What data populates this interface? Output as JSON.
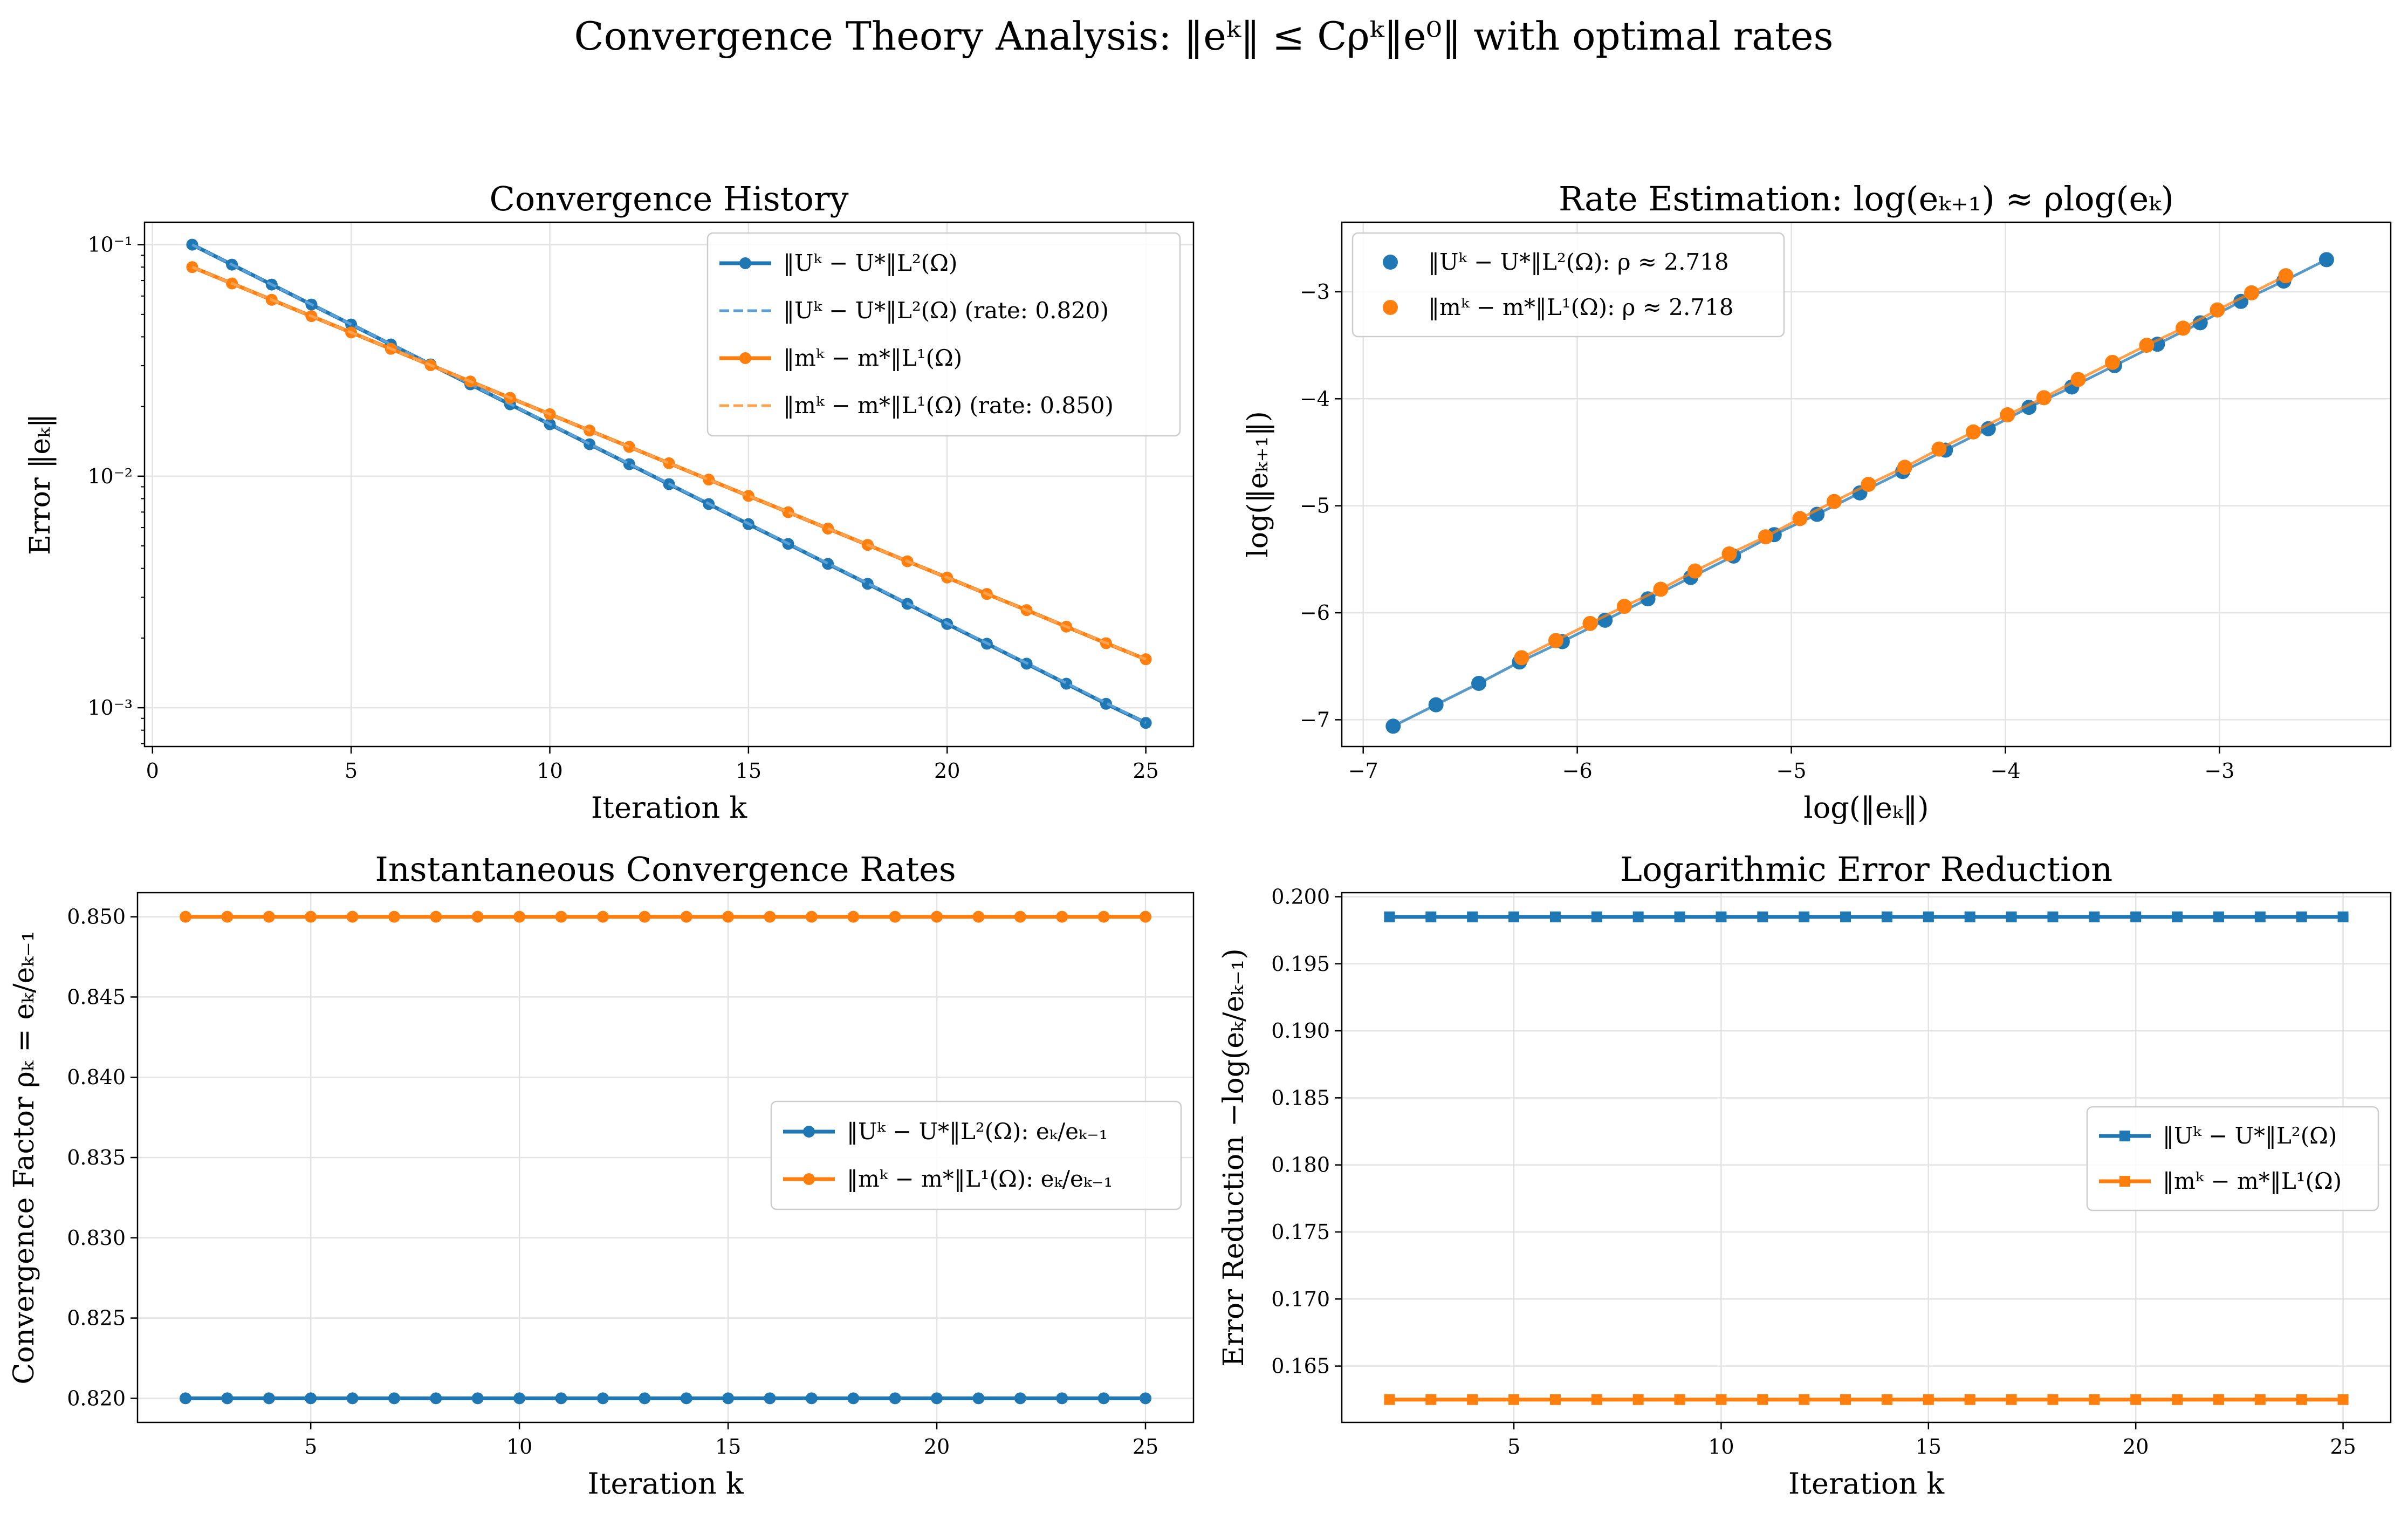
{
  "figure": {
    "suptitle": "Convergence Theory Analysis: ‖eᵏ‖ ≤ Cρᵏ‖e⁰‖ with optimal rates"
  },
  "colors": {
    "blue": "#1f77b4",
    "orange": "#ff7f0e",
    "blue_fit": "#5aa0d8",
    "orange_fit": "#ffa14d"
  },
  "chart_data": [
    {
      "id": "history",
      "type": "line",
      "title": "Convergence History",
      "xlabel": "Iteration k",
      "ylabel": "Error ‖eₖ‖",
      "yscale": "log",
      "xlim": [
        -0.2,
        26.2
      ],
      "ylim": [
        0.00068,
        0.125
      ],
      "xticks": [
        0,
        5,
        10,
        15,
        20,
        25
      ],
      "yticks": [
        0.001,
        0.01,
        0.1
      ],
      "ytick_labels": [
        "10⁻³",
        "10⁻²",
        "10⁻¹"
      ],
      "grid": true,
      "legend_position": "upper right",
      "series": [
        {
          "name": "‖Uᵏ − U*‖L²(Ω)",
          "color": "#1f77b4",
          "style": "line-marker",
          "x": [
            1,
            2,
            3,
            4,
            5,
            6,
            7,
            8,
            9,
            10,
            11,
            12,
            13,
            14,
            15,
            16,
            17,
            18,
            19,
            20,
            21,
            22,
            23,
            24,
            25
          ],
          "values": [
            0.1,
            0.082,
            0.06724,
            0.05514,
            0.04521,
            0.03707,
            0.0304,
            0.02493,
            0.02044,
            0.01676,
            0.01374,
            0.01127,
            0.00924,
            0.00758,
            0.00621,
            0.0051,
            0.00418,
            0.00343,
            0.00281,
            0.0023,
            0.00189,
            0.00155,
            0.00127,
            0.00104,
            0.00086
          ]
        },
        {
          "name": "‖Uᵏ − U*‖L²(Ω) (rate: 0.820)",
          "color": "#5aa0d8",
          "style": "dashed",
          "x": [
            1,
            25
          ],
          "values": [
            0.1,
            0.00086
          ]
        },
        {
          "name": "‖mᵏ − m*‖L¹(Ω)",
          "color": "#ff7f0e",
          "style": "line-marker",
          "x": [
            1,
            2,
            3,
            4,
            5,
            6,
            7,
            8,
            9,
            10,
            11,
            12,
            13,
            14,
            15,
            16,
            17,
            18,
            19,
            20,
            21,
            22,
            23,
            24,
            25
          ],
          "values": [
            0.08,
            0.068,
            0.0578,
            0.04913,
            0.04176,
            0.0355,
            0.03017,
            0.02565,
            0.0218,
            0.01853,
            0.01575,
            0.01339,
            0.01138,
            0.00967,
            0.00822,
            0.00699,
            0.00594,
            0.00505,
            0.00429,
            0.00365,
            0.0031,
            0.00264,
            0.00224,
            0.0019,
            0.00162
          ]
        },
        {
          "name": "‖mᵏ − m*‖L¹(Ω) (rate: 0.850)",
          "color": "#ffa14d",
          "style": "dashed",
          "x": [
            1,
            25
          ],
          "values": [
            0.08,
            0.00162
          ]
        }
      ]
    },
    {
      "id": "rate",
      "type": "scatter",
      "title": "Rate Estimation: log(eₖ₊₁) ≈ ρlog(eₖ)",
      "xlabel": "log(‖eₖ‖)",
      "ylabel": "log(‖eₖ₊₁‖)",
      "xlim": [
        -7.1,
        -2.2
      ],
      "ylim": [
        -7.25,
        -2.35
      ],
      "xticks": [
        -7,
        -6,
        -5,
        -4,
        -3
      ],
      "yticks": [
        -7,
        -6,
        -5,
        -4,
        -3
      ],
      "grid": true,
      "legend_position": "upper left",
      "series": [
        {
          "name": "‖Uᵏ − U*‖L²(Ω): ρ ≈ 2.718",
          "color": "#1f77b4",
          "x": [
            -6.86,
            -6.66,
            -6.46,
            -6.27,
            -6.07,
            -5.87,
            -5.67,
            -5.47,
            -5.27,
            -5.08,
            -4.88,
            -4.68,
            -4.48,
            -4.28,
            -4.08,
            -3.89,
            -3.69,
            -3.49,
            -3.29,
            -3.09,
            -2.9,
            -2.7,
            -2.5
          ],
          "values": [
            -7.06,
            -6.86,
            -6.66,
            -6.46,
            -6.27,
            -6.07,
            -5.87,
            -5.67,
            -5.47,
            -5.27,
            -5.08,
            -4.88,
            -4.68,
            -4.48,
            -4.28,
            -4.08,
            -3.89,
            -3.69,
            -3.49,
            -3.29,
            -3.09,
            -2.9,
            -2.7
          ]
        },
        {
          "name": "‖mᵏ − m*‖L¹(Ω): ρ ≈ 2.718",
          "color": "#ff7f0e",
          "x": [
            -6.26,
            -6.1,
            -5.94,
            -5.78,
            -5.61,
            -5.45,
            -5.29,
            -5.12,
            -4.96,
            -4.8,
            -4.64,
            -4.47,
            -4.31,
            -4.15,
            -3.99,
            -3.82,
            -3.66,
            -3.5,
            -3.34,
            -3.17,
            -3.01,
            -2.85,
            -2.69
          ],
          "values": [
            -6.42,
            -6.26,
            -6.1,
            -5.94,
            -5.78,
            -5.61,
            -5.45,
            -5.29,
            -5.12,
            -4.96,
            -4.8,
            -4.64,
            -4.47,
            -4.31,
            -4.15,
            -3.99,
            -3.82,
            -3.66,
            -3.5,
            -3.34,
            -3.17,
            -3.01,
            -2.85
          ]
        }
      ]
    },
    {
      "id": "inst",
      "type": "line",
      "title": "Instantaneous Convergence Rates",
      "xlabel": "Iteration k",
      "ylabel": "Convergence Factor ρₖ = eₖ/eₖ₋₁",
      "xlim": [
        0.85,
        26.15
      ],
      "ylim": [
        0.8185,
        0.8515
      ],
      "xticks": [
        5,
        10,
        15,
        20,
        25
      ],
      "yticks": [
        0.82,
        0.825,
        0.83,
        0.835,
        0.84,
        0.845,
        0.85
      ],
      "ytick_labels": [
        "0.820",
        "0.825",
        "0.830",
        "0.835",
        "0.840",
        "0.845",
        "0.850"
      ],
      "grid": true,
      "legend_position": "center right",
      "series": [
        {
          "name": "‖Uᵏ − U*‖L²(Ω): eₖ/eₖ₋₁",
          "color": "#1f77b4",
          "x": [
            2,
            3,
            4,
            5,
            6,
            7,
            8,
            9,
            10,
            11,
            12,
            13,
            14,
            15,
            16,
            17,
            18,
            19,
            20,
            21,
            22,
            23,
            24,
            25
          ],
          "values": [
            0.82,
            0.82,
            0.82,
            0.82,
            0.82,
            0.82,
            0.82,
            0.82,
            0.82,
            0.82,
            0.82,
            0.82,
            0.82,
            0.82,
            0.82,
            0.82,
            0.82,
            0.82,
            0.82,
            0.82,
            0.82,
            0.82,
            0.82,
            0.82
          ]
        },
        {
          "name": "‖mᵏ − m*‖L¹(Ω): eₖ/eₖ₋₁",
          "color": "#ff7f0e",
          "x": [
            2,
            3,
            4,
            5,
            6,
            7,
            8,
            9,
            10,
            11,
            12,
            13,
            14,
            15,
            16,
            17,
            18,
            19,
            20,
            21,
            22,
            23,
            24,
            25
          ],
          "values": [
            0.85,
            0.85,
            0.85,
            0.85,
            0.85,
            0.85,
            0.85,
            0.85,
            0.85,
            0.85,
            0.85,
            0.85,
            0.85,
            0.85,
            0.85,
            0.85,
            0.85,
            0.85,
            0.85,
            0.85,
            0.85,
            0.85,
            0.85,
            0.85
          ]
        }
      ]
    },
    {
      "id": "logred",
      "type": "line",
      "title": "Logarithmic Error Reduction",
      "xlabel": "Iteration k",
      "ylabel": "Error Reduction −log(eₖ/eₖ₋₁)",
      "xlim": [
        0.85,
        26.15
      ],
      "ylim": [
        0.1608,
        0.2003
      ],
      "xticks": [
        5,
        10,
        15,
        20,
        25
      ],
      "yticks": [
        0.165,
        0.17,
        0.175,
        0.18,
        0.185,
        0.19,
        0.195,
        0.2
      ],
      "ytick_labels": [
        "0.165",
        "0.170",
        "0.175",
        "0.180",
        "0.185",
        "0.190",
        "0.195",
        "0.200"
      ],
      "grid": true,
      "legend_position": "center right",
      "series": [
        {
          "name": "‖Uᵏ − U*‖L²(Ω)",
          "color": "#1f77b4",
          "marker": "square",
          "x": [
            2,
            3,
            4,
            5,
            6,
            7,
            8,
            9,
            10,
            11,
            12,
            13,
            14,
            15,
            16,
            17,
            18,
            19,
            20,
            21,
            22,
            23,
            24,
            25
          ],
          "values": [
            0.1985,
            0.1985,
            0.1985,
            0.1985,
            0.1985,
            0.1985,
            0.1985,
            0.1985,
            0.1985,
            0.1985,
            0.1985,
            0.1985,
            0.1985,
            0.1985,
            0.1985,
            0.1985,
            0.1985,
            0.1985,
            0.1985,
            0.1985,
            0.1985,
            0.1985,
            0.1985,
            0.1985
          ]
        },
        {
          "name": "‖mᵏ − m*‖L¹(Ω)",
          "color": "#ff7f0e",
          "marker": "square",
          "x": [
            2,
            3,
            4,
            5,
            6,
            7,
            8,
            9,
            10,
            11,
            12,
            13,
            14,
            15,
            16,
            17,
            18,
            19,
            20,
            21,
            22,
            23,
            24,
            25
          ],
          "values": [
            0.1625,
            0.1625,
            0.1625,
            0.1625,
            0.1625,
            0.1625,
            0.1625,
            0.1625,
            0.1625,
            0.1625,
            0.1625,
            0.1625,
            0.1625,
            0.1625,
            0.1625,
            0.1625,
            0.1625,
            0.1625,
            0.1625,
            0.1625,
            0.1625,
            0.1625,
            0.1625,
            0.1625
          ]
        }
      ]
    }
  ]
}
